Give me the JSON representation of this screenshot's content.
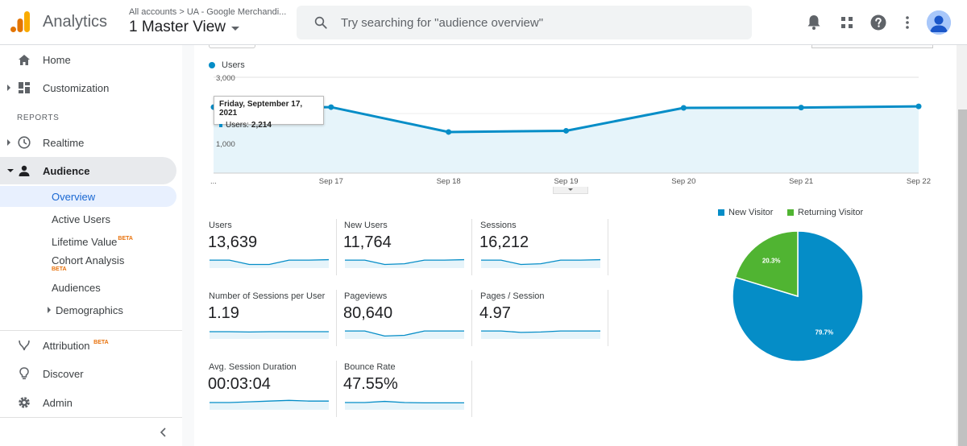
{
  "app": {
    "title": "Analytics",
    "account_path": "All accounts > UA - Google Merchandi...",
    "view_name": "1 Master View"
  },
  "search": {
    "placeholder": "Try searching for \"audience overview\""
  },
  "topbar_icons": [
    "bell-icon",
    "apps-grid-icon",
    "help-icon",
    "more-vert-icon",
    "avatar"
  ],
  "sidebar": {
    "items_top": [
      {
        "label": "Home",
        "icon": "home-icon"
      },
      {
        "label": "Customization",
        "icon": "dashboard-icon"
      }
    ],
    "reports_header": "REPORTS",
    "realtime": {
      "label": "Realtime",
      "icon": "clock-icon"
    },
    "audience": {
      "label": "Audience",
      "icon": "person-icon"
    },
    "audience_sub": [
      {
        "label": "Overview",
        "selected": true
      },
      {
        "label": "Active Users"
      },
      {
        "label": "Lifetime Value",
        "badge": "BETA"
      },
      {
        "label": "Cohort Analysis",
        "badge": "BETA"
      },
      {
        "label": "Audiences"
      },
      {
        "label": "Demographics"
      }
    ],
    "items_bottom": [
      {
        "label": "Attribution",
        "icon": "attribution-icon",
        "badge": "BETA"
      },
      {
        "label": "Discover",
        "icon": "lightbulb-icon"
      },
      {
        "label": "Admin",
        "icon": "gear-icon"
      }
    ]
  },
  "chart_data": [
    {
      "type": "area",
      "series": [
        {
          "name": "Users",
          "values": [
            2214,
            2214,
            1380,
            1420,
            2190,
            2200,
            2240
          ]
        }
      ],
      "x": [
        "...",
        "Sep 17",
        "Sep 18",
        "Sep 19",
        "Sep 20",
        "Sep 21",
        "Sep 22"
      ],
      "y_tick_labels": [
        "3,000",
        "1,000"
      ],
      "ylim": [
        0,
        3000
      ],
      "color": "#058dc7",
      "tooltip": {
        "date": "Friday, September 17, 2021",
        "series": "Users:",
        "value": "2,214"
      }
    },
    {
      "type": "pie",
      "categories": [
        "New Visitor",
        "Returning Visitor"
      ],
      "values": [
        79.7,
        20.3
      ],
      "labels": [
        "79.7%",
        "20.3%"
      ],
      "colors": [
        "#058dc7",
        "#50b432"
      ]
    }
  ],
  "metrics": [
    {
      "label": "Users",
      "value": "13,639",
      "spark": [
        0.55,
        0.55,
        0.25,
        0.25,
        0.55,
        0.55,
        0.58
      ]
    },
    {
      "label": "New Users",
      "value": "11,764",
      "spark": [
        0.55,
        0.55,
        0.25,
        0.3,
        0.55,
        0.55,
        0.58
      ]
    },
    {
      "label": "Sessions",
      "value": "16,212",
      "spark": [
        0.55,
        0.55,
        0.25,
        0.3,
        0.55,
        0.55,
        0.58
      ]
    },
    {
      "label": "Number of Sessions per User",
      "value": "1.19",
      "spark": [
        0.5,
        0.5,
        0.48,
        0.5,
        0.5,
        0.5,
        0.5
      ]
    },
    {
      "label": "Pageviews",
      "value": "80,640",
      "spark": [
        0.55,
        0.55,
        0.2,
        0.25,
        0.55,
        0.55,
        0.55
      ]
    },
    {
      "label": "Pages / Session",
      "value": "4.97",
      "spark": [
        0.55,
        0.55,
        0.45,
        0.48,
        0.55,
        0.55,
        0.55
      ]
    },
    {
      "label": "Avg. Session Duration",
      "value": "00:03:04",
      "spark": [
        0.5,
        0.5,
        0.55,
        0.6,
        0.65,
        0.6,
        0.6
      ]
    },
    {
      "label": "Bounce Rate",
      "value": "47.55%",
      "spark": [
        0.5,
        0.5,
        0.58,
        0.5,
        0.48,
        0.48,
        0.48
      ]
    }
  ]
}
